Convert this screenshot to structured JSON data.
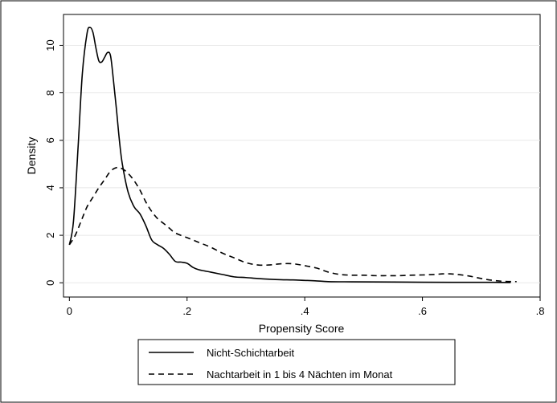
{
  "chart_data": {
    "type": "line",
    "xlabel": "Propensity Score",
    "ylabel": "Density",
    "xlim": [
      -0.01,
      0.8
    ],
    "ylim": [
      -0.6,
      11.3
    ],
    "x_ticks": [
      0,
      0.2,
      0.4,
      0.6,
      0.8
    ],
    "x_tick_labels": [
      "0",
      ".2",
      ".4",
      ".6",
      ".8"
    ],
    "y_ticks": [
      0,
      2,
      4,
      6,
      8,
      10
    ],
    "y_tick_labels": [
      "0",
      "2",
      "4",
      "6",
      "8",
      "10"
    ],
    "grid": "horizontal",
    "legend_position": "bottom",
    "series": [
      {
        "name": "Nicht-Schichtarbeit",
        "style": "solid",
        "color": "#000000",
        "points": [
          [
            0.0,
            1.6
          ],
          [
            0.007,
            2.6
          ],
          [
            0.015,
            5.8
          ],
          [
            0.022,
            8.8
          ],
          [
            0.03,
            10.5
          ],
          [
            0.035,
            10.75
          ],
          [
            0.04,
            10.55
          ],
          [
            0.045,
            9.9
          ],
          [
            0.05,
            9.35
          ],
          [
            0.055,
            9.3
          ],
          [
            0.06,
            9.5
          ],
          [
            0.065,
            9.7
          ],
          [
            0.07,
            9.55
          ],
          [
            0.075,
            8.5
          ],
          [
            0.08,
            7.3
          ],
          [
            0.085,
            6.0
          ],
          [
            0.09,
            5.0
          ],
          [
            0.1,
            3.8
          ],
          [
            0.11,
            3.2
          ],
          [
            0.12,
            2.9
          ],
          [
            0.13,
            2.4
          ],
          [
            0.14,
            1.8
          ],
          [
            0.15,
            1.6
          ],
          [
            0.16,
            1.45
          ],
          [
            0.17,
            1.2
          ],
          [
            0.18,
            0.9
          ],
          [
            0.19,
            0.87
          ],
          [
            0.2,
            0.82
          ],
          [
            0.21,
            0.65
          ],
          [
            0.22,
            0.55
          ],
          [
            0.24,
            0.45
          ],
          [
            0.26,
            0.35
          ],
          [
            0.28,
            0.25
          ],
          [
            0.3,
            0.22
          ],
          [
            0.32,
            0.18
          ],
          [
            0.34,
            0.15
          ],
          [
            0.36,
            0.13
          ],
          [
            0.38,
            0.12
          ],
          [
            0.4,
            0.1
          ],
          [
            0.42,
            0.08
          ],
          [
            0.44,
            0.05
          ],
          [
            0.48,
            0.04
          ],
          [
            0.55,
            0.03
          ],
          [
            0.65,
            0.02
          ],
          [
            0.72,
            0.02
          ],
          [
            0.75,
            0.01
          ]
        ]
      },
      {
        "name": "Nachtarbeit in 1 bis 4 Nächten im Monat",
        "style": "dashed",
        "color": "#000000",
        "points": [
          [
            0.0,
            1.6
          ],
          [
            0.01,
            2.0
          ],
          [
            0.02,
            2.6
          ],
          [
            0.03,
            3.2
          ],
          [
            0.04,
            3.6
          ],
          [
            0.05,
            4.0
          ],
          [
            0.06,
            4.35
          ],
          [
            0.07,
            4.7
          ],
          [
            0.08,
            4.85
          ],
          [
            0.09,
            4.8
          ],
          [
            0.1,
            4.6
          ],
          [
            0.11,
            4.3
          ],
          [
            0.12,
            3.9
          ],
          [
            0.13,
            3.4
          ],
          [
            0.14,
            3.0
          ],
          [
            0.15,
            2.7
          ],
          [
            0.16,
            2.5
          ],
          [
            0.17,
            2.3
          ],
          [
            0.18,
            2.1
          ],
          [
            0.2,
            1.9
          ],
          [
            0.22,
            1.7
          ],
          [
            0.24,
            1.5
          ],
          [
            0.26,
            1.25
          ],
          [
            0.28,
            1.05
          ],
          [
            0.3,
            0.85
          ],
          [
            0.32,
            0.75
          ],
          [
            0.34,
            0.75
          ],
          [
            0.36,
            0.8
          ],
          [
            0.38,
            0.8
          ],
          [
            0.4,
            0.72
          ],
          [
            0.42,
            0.62
          ],
          [
            0.44,
            0.45
          ],
          [
            0.46,
            0.35
          ],
          [
            0.48,
            0.32
          ],
          [
            0.5,
            0.32
          ],
          [
            0.52,
            0.3
          ],
          [
            0.54,
            0.3
          ],
          [
            0.56,
            0.3
          ],
          [
            0.58,
            0.32
          ],
          [
            0.6,
            0.33
          ],
          [
            0.62,
            0.35
          ],
          [
            0.64,
            0.38
          ],
          [
            0.66,
            0.35
          ],
          [
            0.68,
            0.28
          ],
          [
            0.7,
            0.18
          ],
          [
            0.72,
            0.1
          ],
          [
            0.74,
            0.06
          ],
          [
            0.76,
            0.05
          ]
        ]
      }
    ]
  }
}
